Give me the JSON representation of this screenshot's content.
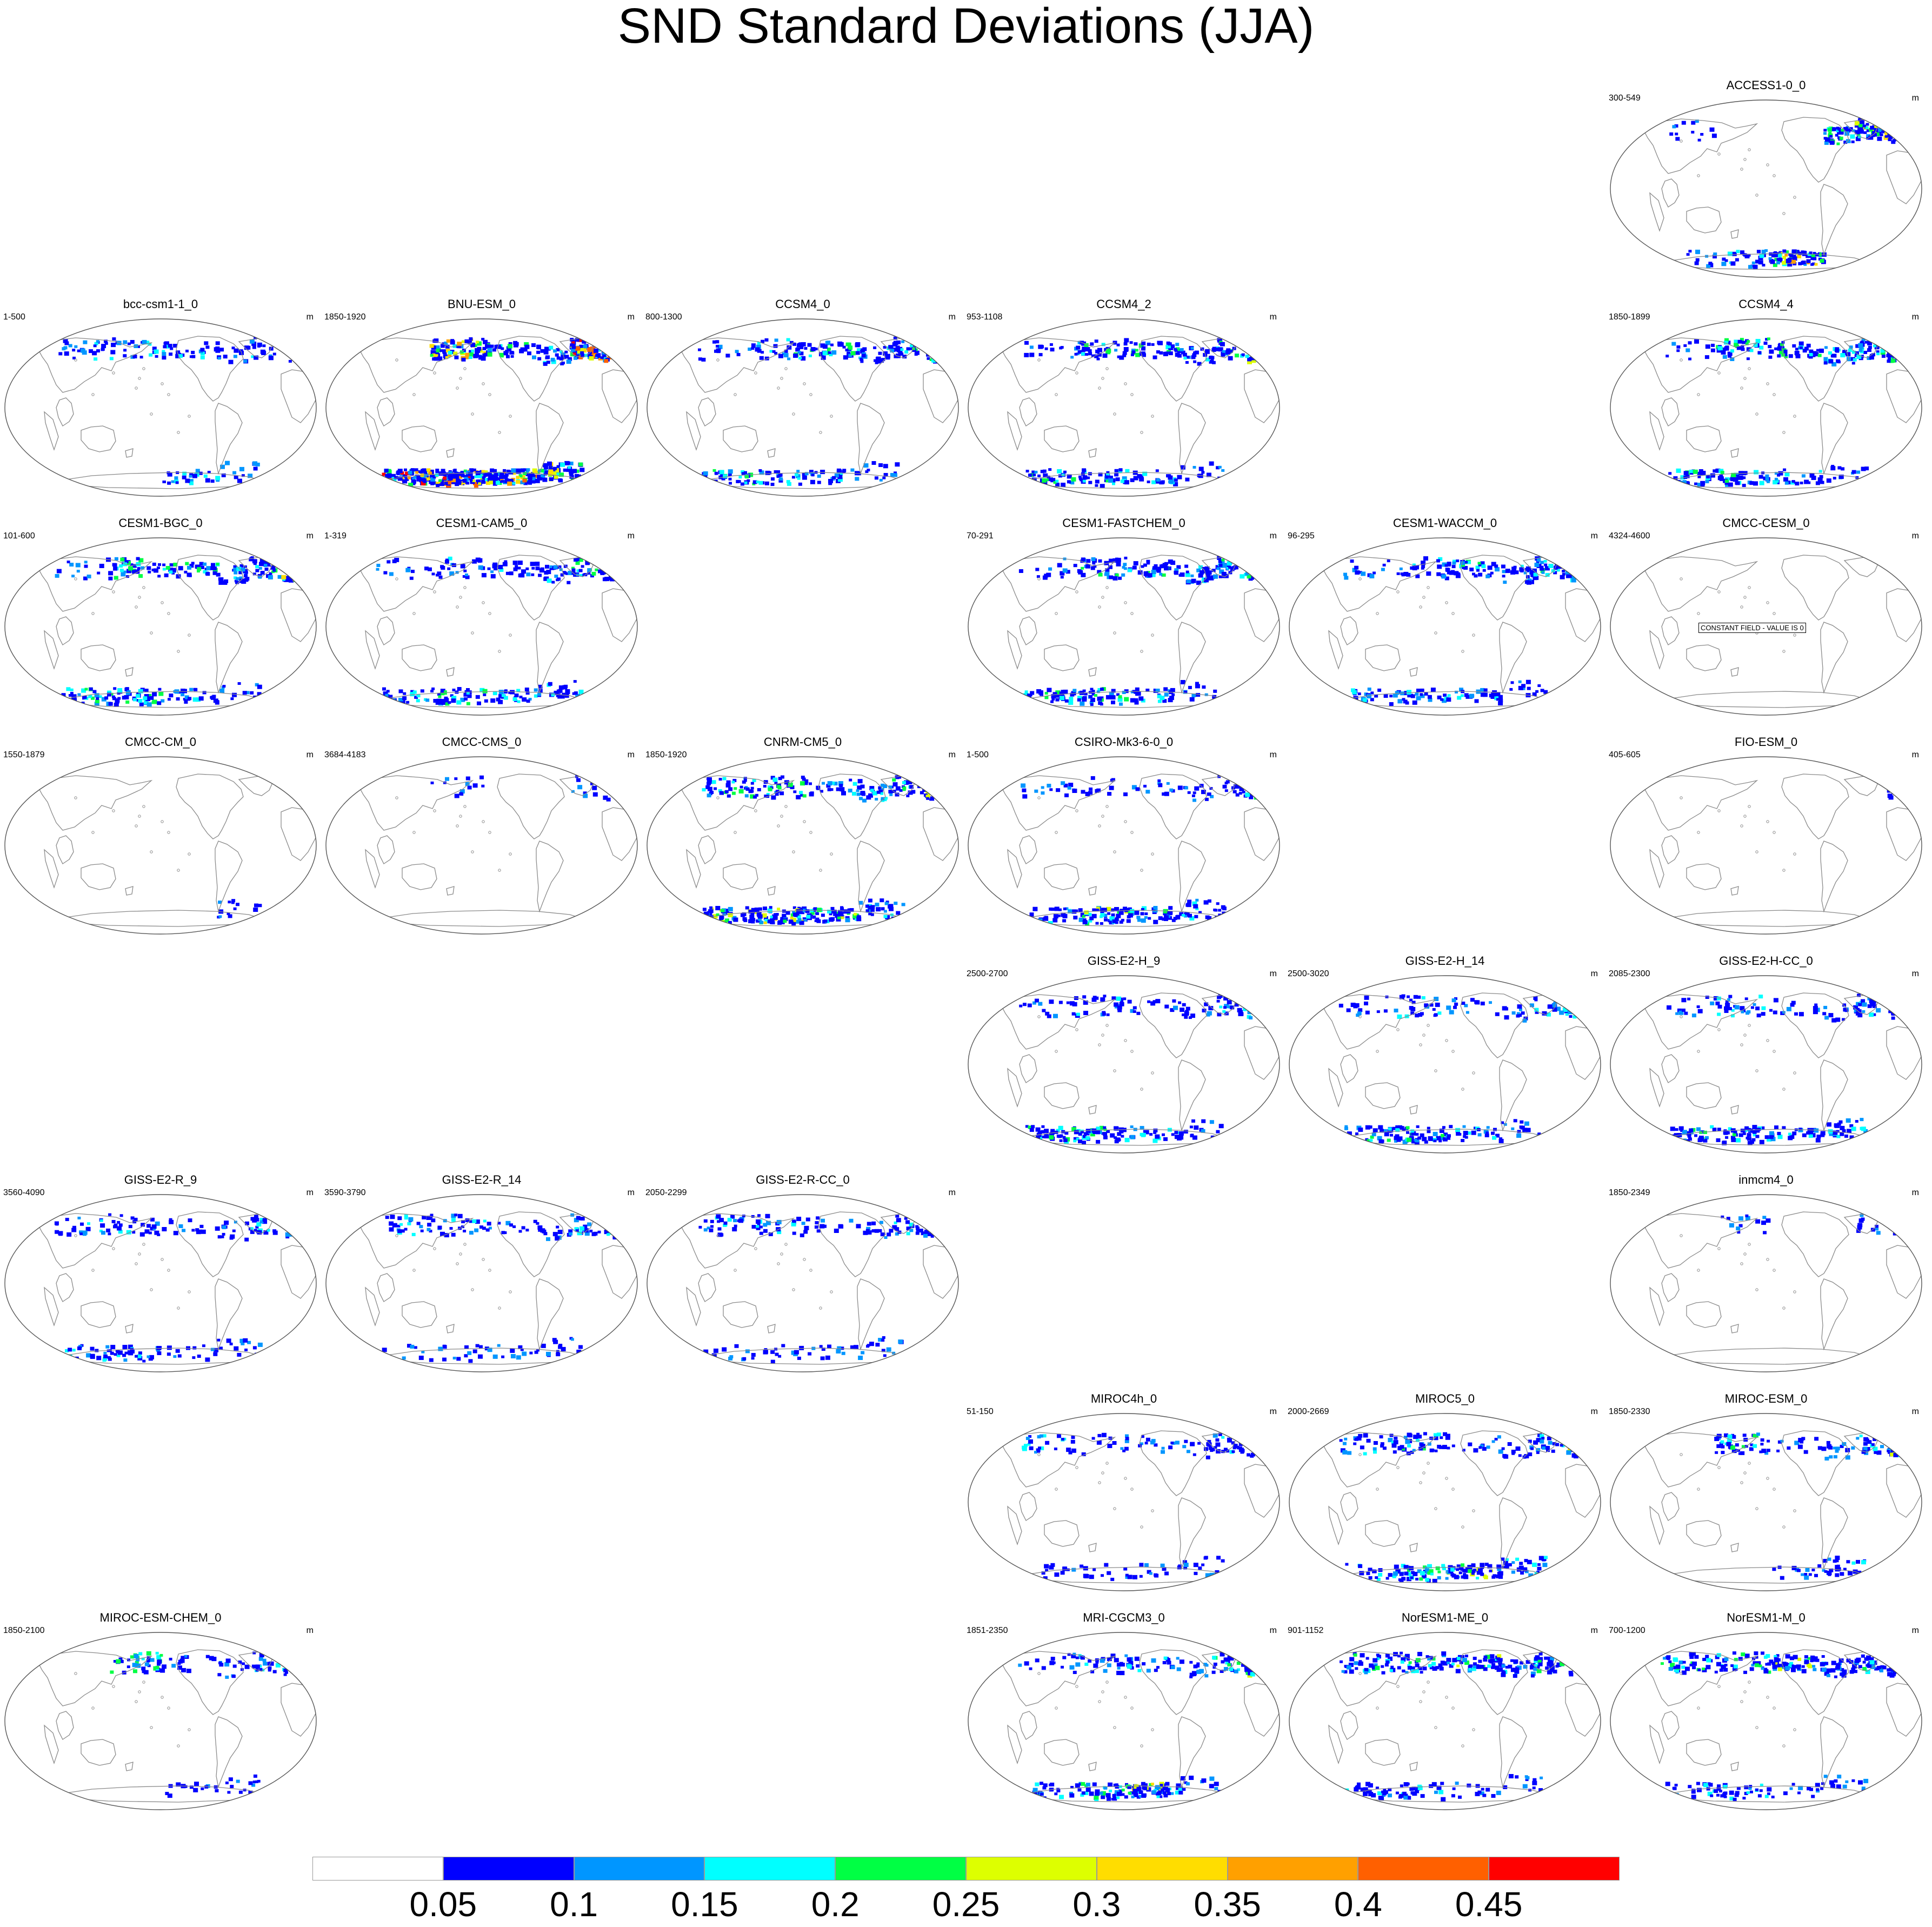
{
  "title": "SND Standard Deviations (JJA)",
  "unit": "m",
  "constant_field_note": "CONSTANT FIELD - VALUE IS 0",
  "colorbar": {
    "labels": [
      "0.05",
      "0.1",
      "0.15",
      "0.2",
      "0.25",
      "0.3",
      "0.35",
      "0.4",
      "0.45"
    ],
    "colors": [
      "#ffffff",
      "#0000ff",
      "#0096ff",
      "#00ffff",
      "#00ff44",
      "#ddff00",
      "#ffdd00",
      "#ffa000",
      "#ff6000",
      "#ff0000"
    ]
  },
  "map_colors": {
    "coast": "#8a8a8a",
    "border": "#555555",
    "snow": [
      "#0000ff",
      "#0096ff",
      "#00ffff",
      "#00ff44",
      "#ddff00",
      "#ffdd00",
      "#ffa000",
      "#ff6000",
      "#ff0000"
    ]
  },
  "panels": [
    {
      "model": "ACCESS1-0_0",
      "years": "300-549",
      "nh": [
        1,
        0,
        0,
        3,
        5,
        2
      ],
      "sh": [
        1,
        2,
        6,
        0
      ]
    },
    {
      "model": "bcc-csm1-1_0",
      "years": "1-500",
      "nh": [
        2,
        2,
        2,
        1,
        2,
        1
      ],
      "sh": [
        0,
        0,
        2,
        1
      ]
    },
    {
      "model": "BNU-ESM_0",
      "years": "1850-1920",
      "nh": [
        0,
        6,
        3,
        2,
        8,
        8
      ],
      "sh": [
        8,
        8,
        7,
        5
      ]
    },
    {
      "model": "CCSM4_0",
      "years": "800-1300",
      "nh": [
        1,
        3,
        3,
        2,
        3,
        4
      ],
      "sh": [
        3,
        2,
        2,
        1
      ]
    },
    {
      "model": "CCSM4_2",
      "years": "953-1108",
      "nh": [
        1,
        3,
        3,
        2,
        3,
        4
      ],
      "sh": [
        3,
        3,
        2,
        1
      ]
    },
    {
      "model": "CCSM4_4",
      "years": "1850-1899",
      "nh": [
        1,
        3,
        3,
        2,
        3,
        5
      ],
      "sh": [
        3,
        3,
        2,
        1
      ]
    },
    {
      "model": "CESM1-BGC_0",
      "years": "101-600",
      "nh": [
        1,
        3,
        3,
        2,
        3,
        5
      ],
      "sh": [
        3,
        3,
        2,
        1
      ]
    },
    {
      "model": "CESM1-CAM5_0",
      "years": "1-319",
      "nh": [
        1,
        2,
        2,
        2,
        3,
        4
      ],
      "sh": [
        2,
        3,
        2,
        2
      ]
    },
    {
      "model": "CESM1-FASTCHEM_0",
      "years": "70-291",
      "nh": [
        1,
        3,
        3,
        2,
        3,
        4
      ],
      "sh": [
        3,
        3,
        2,
        1
      ]
    },
    {
      "model": "CESM1-WACCM_0",
      "years": "96-295",
      "nh": [
        1,
        2,
        3,
        2,
        3,
        4
      ],
      "sh": [
        2,
        2,
        2,
        1
      ]
    },
    {
      "model": "CMCC-CESM_0",
      "years": "4324-4600",
      "nh": [
        0,
        0,
        0,
        0,
        0,
        0
      ],
      "sh": [
        0,
        0,
        0,
        0
      ],
      "constant": true
    },
    {
      "model": "CMCC-CM_0",
      "years": "1550-1879",
      "nh": [
        0,
        0,
        0,
        0,
        0,
        0
      ],
      "sh": [
        0,
        0,
        0,
        1
      ]
    },
    {
      "model": "CMCC-CMS_0",
      "years": "3684-4183",
      "nh": [
        0,
        1,
        0,
        0,
        1,
        1
      ],
      "sh": [
        0,
        0,
        0,
        0
      ]
    },
    {
      "model": "CNRM-CM5_0",
      "years": "1850-1920",
      "nh": [
        3,
        3,
        2,
        2,
        3,
        4
      ],
      "sh": [
        4,
        5,
        4,
        2
      ]
    },
    {
      "model": "CSIRO-Mk3-6-0_0",
      "years": "1-500",
      "nh": [
        1,
        1,
        1,
        1,
        2,
        3
      ],
      "sh": [
        2,
        4,
        3,
        2
      ]
    },
    {
      "model": "FIO-ESM_0",
      "years": "405-605",
      "nh": [
        0,
        0,
        0,
        0,
        0,
        1
      ],
      "sh": [
        0,
        0,
        0,
        0
      ]
    },
    {
      "model": "GISS-E2-H_9",
      "years": "2500-2700",
      "nh": [
        1,
        2,
        1,
        1,
        2,
        2
      ],
      "sh": [
        3,
        3,
        2,
        1
      ]
    },
    {
      "model": "GISS-E2-H_14",
      "years": "2500-3020",
      "nh": [
        1,
        2,
        1,
        1,
        2,
        2
      ],
      "sh": [
        3,
        3,
        2,
        1
      ]
    },
    {
      "model": "GISS-E2-H-CC_0",
      "years": "2085-2300",
      "nh": [
        1,
        2,
        1,
        1,
        2,
        3
      ],
      "sh": [
        3,
        3,
        2,
        2
      ]
    },
    {
      "model": "GISS-E2-R_9",
      "years": "3560-4090",
      "nh": [
        2,
        2,
        1,
        1,
        2,
        3
      ],
      "sh": [
        2,
        2,
        1,
        1
      ]
    },
    {
      "model": "GISS-E2-R_14",
      "years": "3590-3790",
      "nh": [
        2,
        2,
        1,
        1,
        2,
        3
      ],
      "sh": [
        1,
        1,
        1,
        1
      ]
    },
    {
      "model": "GISS-E2-R-CC_0",
      "years": "2050-2299",
      "nh": [
        2,
        2,
        1,
        1,
        2,
        3
      ],
      "sh": [
        1,
        1,
        1,
        1
      ]
    },
    {
      "model": "inmcm4_0",
      "years": "1850-2349",
      "nh": [
        0,
        1,
        0,
        0,
        1,
        1
      ],
      "sh": [
        0,
        0,
        0,
        0
      ]
    },
    {
      "model": "MIROC4h_0",
      "years": "51-150",
      "nh": [
        2,
        1,
        1,
        1,
        2,
        3
      ],
      "sh": [
        1,
        1,
        1,
        1
      ]
    },
    {
      "model": "MIROC5_0",
      "years": "2000-2669",
      "nh": [
        2,
        3,
        1,
        1,
        2,
        5
      ],
      "sh": [
        2,
        3,
        4,
        2
      ]
    },
    {
      "model": "MIROC-ESM_0",
      "years": "1850-2330",
      "nh": [
        0,
        3,
        1,
        1,
        2,
        4
      ],
      "sh": [
        0,
        0,
        1,
        2
      ]
    },
    {
      "model": "MIROC-ESM-CHEM_0",
      "years": "1850-2100",
      "nh": [
        0,
        3,
        1,
        1,
        2,
        4
      ],
      "sh": [
        0,
        0,
        1,
        1
      ]
    },
    {
      "model": "MRI-CGCM3_0",
      "years": "1851-2350",
      "nh": [
        1,
        2,
        2,
        1,
        3,
        4
      ],
      "sh": [
        2,
        3,
        5,
        1
      ]
    },
    {
      "model": "NorESM1-ME_0",
      "years": "901-1152",
      "nh": [
        3,
        3,
        4,
        2,
        3,
        4
      ],
      "sh": [
        2,
        2,
        1,
        1
      ]
    },
    {
      "model": "NorESM1-M_0",
      "years": "700-1200",
      "nh": [
        3,
        3,
        4,
        2,
        3,
        4
      ],
      "sh": [
        2,
        2,
        1,
        1
      ]
    }
  ]
}
